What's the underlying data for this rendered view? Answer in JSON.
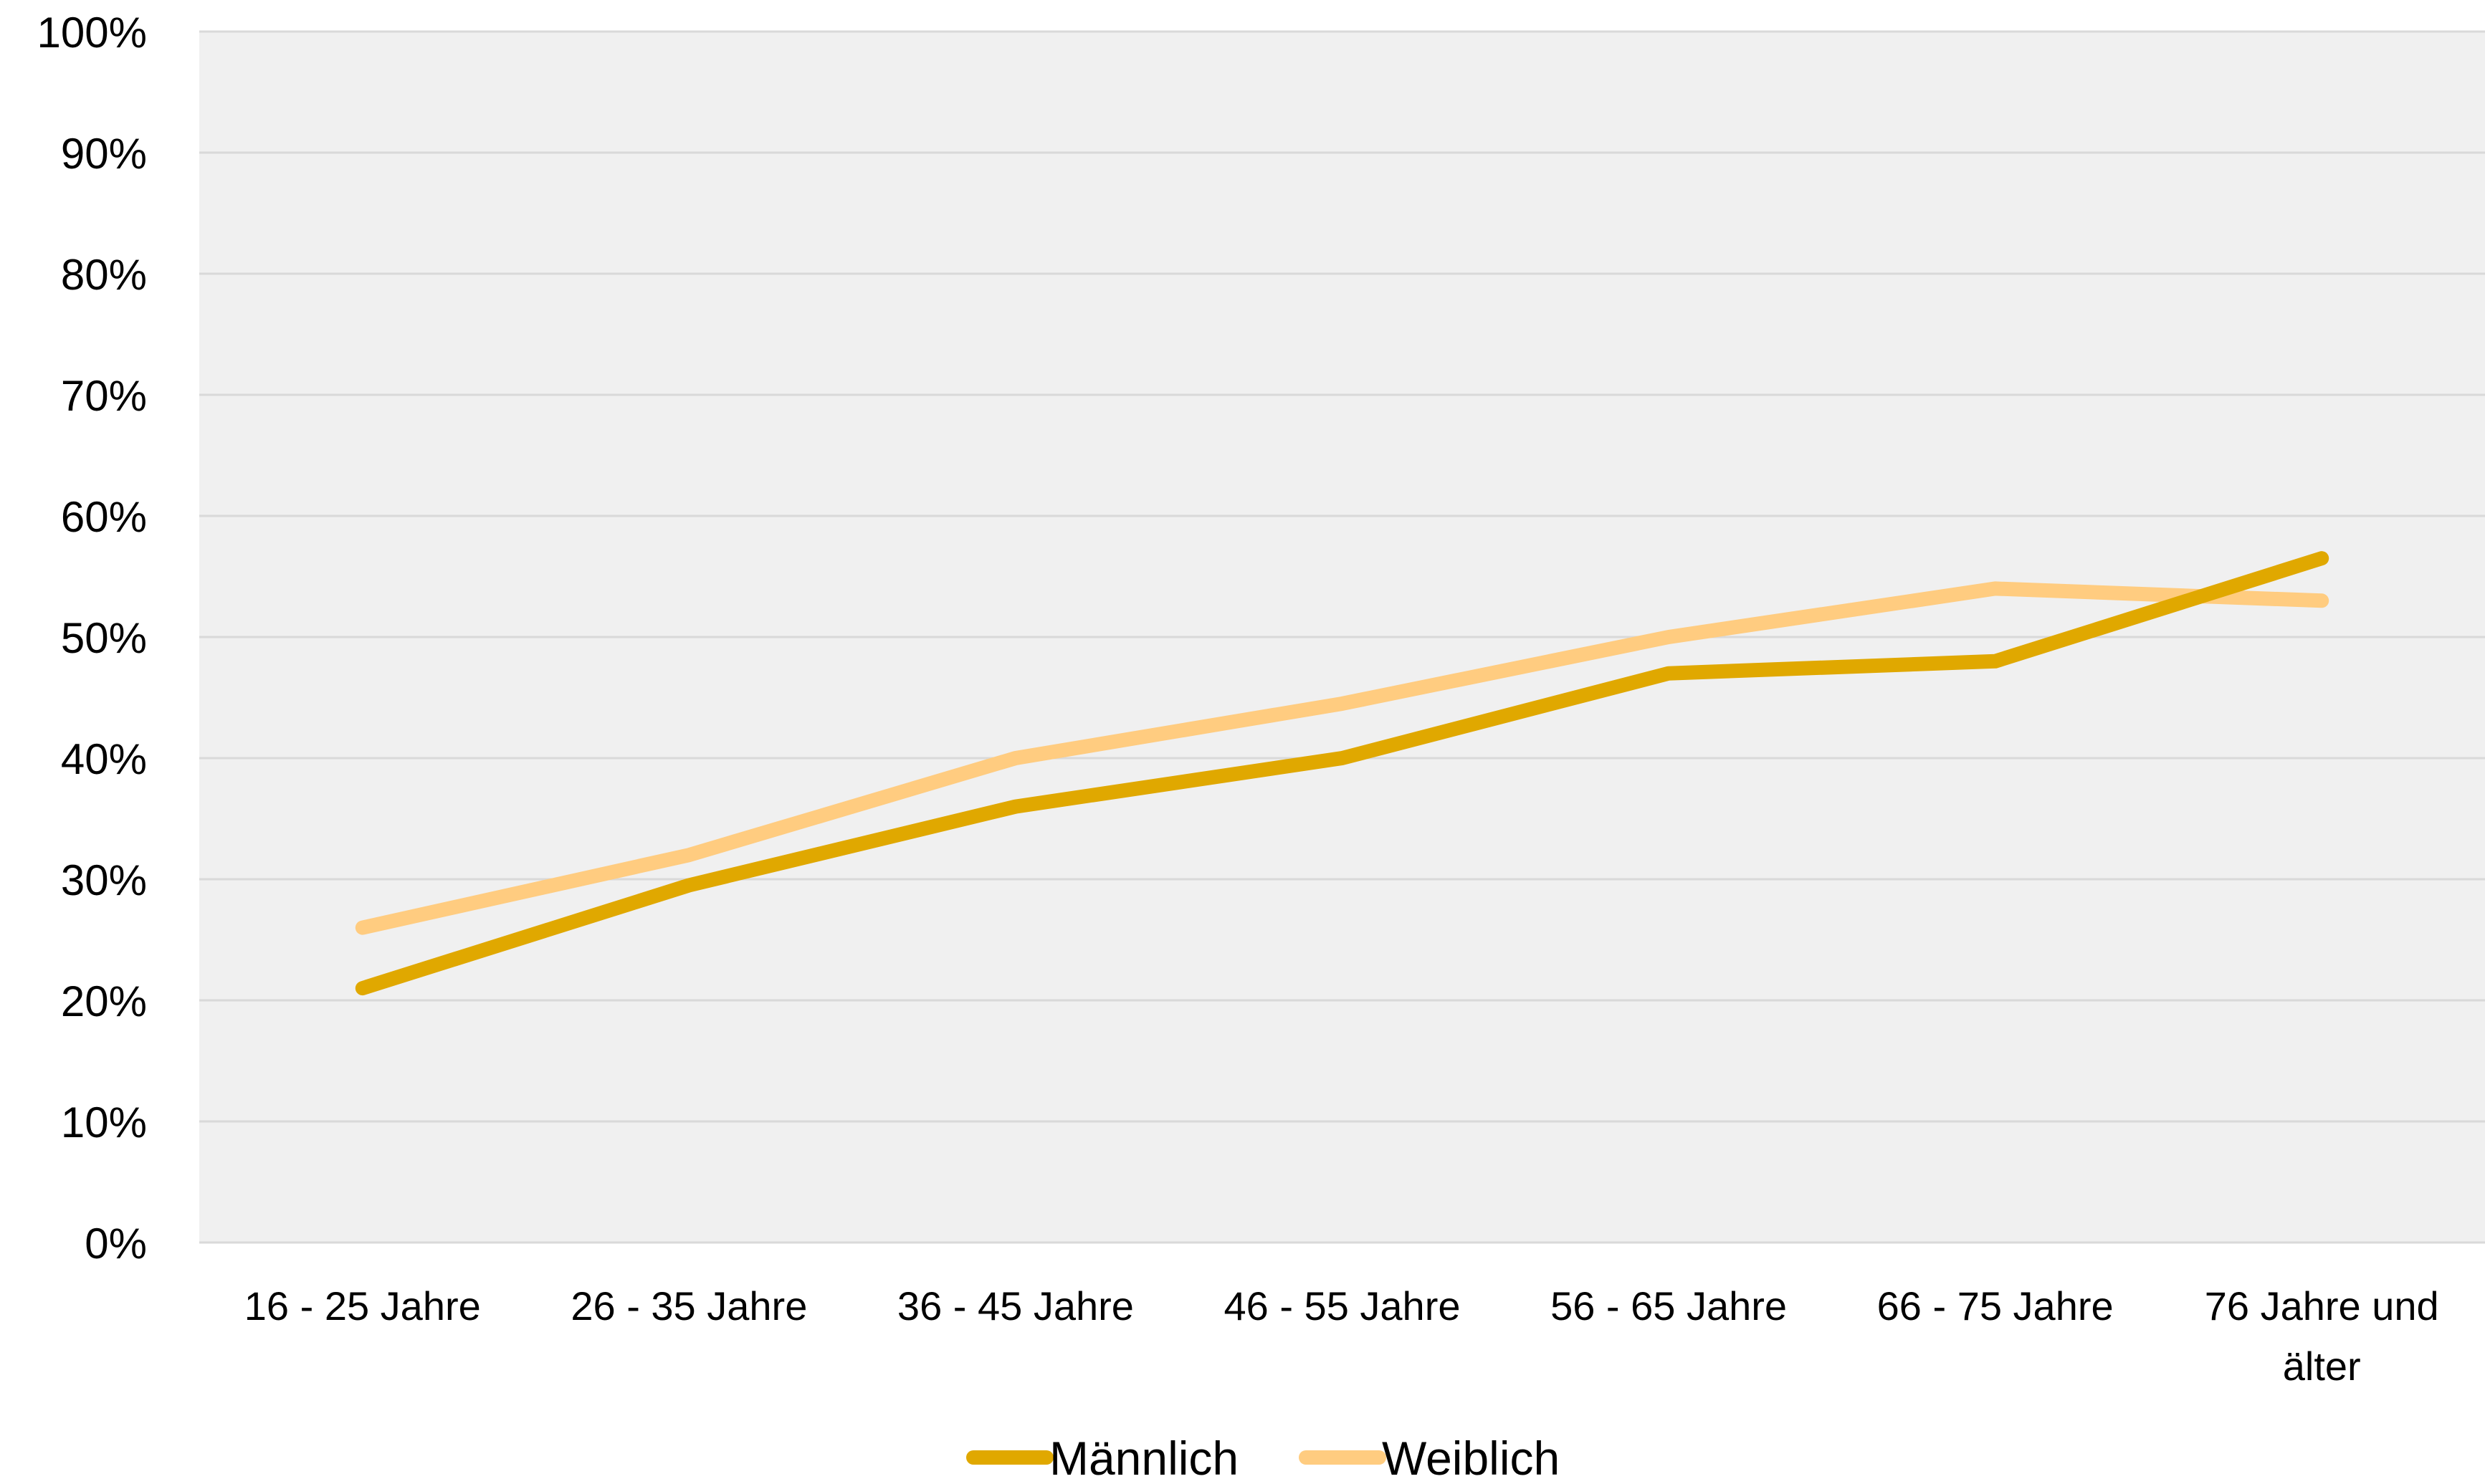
{
  "chart_data": {
    "type": "line",
    "title": "",
    "xlabel": "",
    "ylabel": "",
    "ylim": [
      0,
      1
    ],
    "y_ticks": [
      0,
      0.1,
      0.2,
      0.3,
      0.4,
      0.5,
      0.6,
      0.7,
      0.8,
      0.9,
      1.0
    ],
    "y_tick_labels": [
      "0%",
      "10%",
      "20%",
      "30%",
      "40%",
      "50%",
      "60%",
      "70%",
      "80%",
      "90%",
      "100%"
    ],
    "categories": [
      [
        "16 - 25 Jahre"
      ],
      [
        "26 - 35 Jahre"
      ],
      [
        "36 - 45 Jahre"
      ],
      [
        "46 - 55 Jahre"
      ],
      [
        "56 - 65 Jahre"
      ],
      [
        "66 - 75 Jahre"
      ],
      [
        "76 Jahre und",
        "älter"
      ]
    ],
    "series": [
      {
        "name": "Männlich",
        "color": "#E0A800",
        "values": [
          0.21,
          0.295,
          0.36,
          0.4,
          0.47,
          0.48,
          0.565
        ]
      },
      {
        "name": "Weiblich",
        "color": "#FFCC80",
        "values": [
          0.26,
          0.32,
          0.4,
          0.445,
          0.5,
          0.54,
          0.53
        ]
      }
    ],
    "grid": true,
    "plot_background": "#F0F0F0",
    "gridline_color": "#D9D9D9",
    "legend": "bottom-center"
  }
}
